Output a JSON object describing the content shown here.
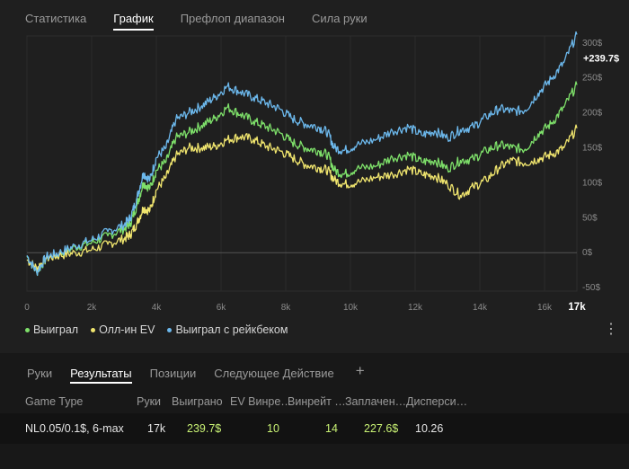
{
  "tabs": [
    "Статистика",
    "График",
    "Префлоп диапазон",
    "Сила руки"
  ],
  "active_tab": 1,
  "chart_data": {
    "type": "line",
    "x_ticks": [
      "0",
      "2k",
      "4k",
      "6k",
      "8k",
      "10k",
      "12k",
      "14k",
      "16k"
    ],
    "x_end_label": "17k",
    "y_ticks": [
      "300$",
      "250$",
      "200$",
      "150$",
      "100$",
      "50$",
      "0$",
      "-50$"
    ],
    "ylim": [
      -55,
      310
    ],
    "xlim": [
      0,
      17000
    ],
    "end_label": "+239.7$",
    "series": [
      {
        "name": "Выиграл",
        "color": "#7ee06a",
        "points": [
          [
            0,
            -5
          ],
          [
            300,
            -28
          ],
          [
            600,
            -8
          ],
          [
            1000,
            -2
          ],
          [
            1500,
            8
          ],
          [
            2000,
            14
          ],
          [
            2500,
            24
          ],
          [
            3000,
            34
          ],
          [
            3200,
            42
          ],
          [
            3400,
            68
          ],
          [
            3600,
            100
          ],
          [
            3800,
            92
          ],
          [
            4000,
            118
          ],
          [
            4300,
            130
          ],
          [
            4600,
            164
          ],
          [
            5000,
            172
          ],
          [
            5400,
            182
          ],
          [
            5800,
            192
          ],
          [
            6200,
            208
          ],
          [
            6600,
            198
          ],
          [
            7000,
            188
          ],
          [
            7400,
            180
          ],
          [
            7800,
            172
          ],
          [
            8200,
            158
          ],
          [
            8600,
            150
          ],
          [
            9000,
            146
          ],
          [
            9300,
            140
          ],
          [
            9500,
            118
          ],
          [
            9800,
            112
          ],
          [
            10200,
            120
          ],
          [
            10800,
            124
          ],
          [
            11300,
            136
          ],
          [
            11800,
            140
          ],
          [
            12200,
            130
          ],
          [
            12600,
            132
          ],
          [
            13000,
            120
          ],
          [
            13400,
            132
          ],
          [
            13800,
            134
          ],
          [
            14200,
            146
          ],
          [
            14600,
            154
          ],
          [
            15000,
            150
          ],
          [
            15400,
            148
          ],
          [
            15800,
            170
          ],
          [
            16200,
            184
          ],
          [
            16600,
            208
          ],
          [
            17000,
            240
          ]
        ]
      },
      {
        "name": "Олл-ин EV",
        "color": "#f0e56e",
        "points": [
          [
            0,
            -10
          ],
          [
            300,
            -22
          ],
          [
            600,
            -8
          ],
          [
            1000,
            -4
          ],
          [
            1500,
            0
          ],
          [
            2000,
            4
          ],
          [
            2500,
            12
          ],
          [
            3000,
            20
          ],
          [
            3200,
            26
          ],
          [
            3400,
            42
          ],
          [
            3600,
            64
          ],
          [
            3800,
            60
          ],
          [
            4000,
            90
          ],
          [
            4300,
            108
          ],
          [
            4600,
            138
          ],
          [
            5000,
            150
          ],
          [
            5400,
            150
          ],
          [
            5800,
            152
          ],
          [
            6200,
            162
          ],
          [
            6600,
            166
          ],
          [
            7000,
            162
          ],
          [
            7400,
            152
          ],
          [
            7800,
            146
          ],
          [
            8200,
            136
          ],
          [
            8600,
            126
          ],
          [
            9000,
            122
          ],
          [
            9300,
            118
          ],
          [
            9500,
            104
          ],
          [
            9800,
            98
          ],
          [
            10200,
            100
          ],
          [
            10800,
            108
          ],
          [
            11300,
            112
          ],
          [
            11800,
            120
          ],
          [
            12200,
            112
          ],
          [
            12600,
            110
          ],
          [
            13000,
            98
          ],
          [
            13400,
            82
          ],
          [
            13800,
            94
          ],
          [
            14200,
            104
          ],
          [
            14600,
            122
          ],
          [
            15000,
            132
          ],
          [
            15400,
            128
          ],
          [
            15800,
            134
          ],
          [
            16200,
            140
          ],
          [
            16600,
            150
          ],
          [
            17000,
            178
          ]
        ]
      },
      {
        "name": "Выиграл с рейкбеком",
        "color": "#6cb8ec",
        "points": [
          [
            0,
            -4
          ],
          [
            300,
            -28
          ],
          [
            600,
            -6
          ],
          [
            1000,
            0
          ],
          [
            1500,
            10
          ],
          [
            2000,
            18
          ],
          [
            2500,
            30
          ],
          [
            3000,
            40
          ],
          [
            3200,
            50
          ],
          [
            3400,
            78
          ],
          [
            3600,
            114
          ],
          [
            3800,
            104
          ],
          [
            4000,
            136
          ],
          [
            4300,
            150
          ],
          [
            4600,
            190
          ],
          [
            5000,
            200
          ],
          [
            5400,
            210
          ],
          [
            5800,
            222
          ],
          [
            6200,
            238
          ],
          [
            6600,
            230
          ],
          [
            7000,
            222
          ],
          [
            7400,
            214
          ],
          [
            7800,
            206
          ],
          [
            8200,
            192
          ],
          [
            8600,
            184
          ],
          [
            9000,
            180
          ],
          [
            9300,
            172
          ],
          [
            9500,
            150
          ],
          [
            9800,
            146
          ],
          [
            10200,
            154
          ],
          [
            10800,
            162
          ],
          [
            11300,
            174
          ],
          [
            11800,
            180
          ],
          [
            12200,
            168
          ],
          [
            12600,
            174
          ],
          [
            13000,
            164
          ],
          [
            13400,
            176
          ],
          [
            13800,
            180
          ],
          [
            14200,
            194
          ],
          [
            14600,
            206
          ],
          [
            15000,
            202
          ],
          [
            15400,
            204
          ],
          [
            15800,
            228
          ],
          [
            16200,
            248
          ],
          [
            16600,
            272
          ],
          [
            17000,
            312
          ]
        ]
      }
    ]
  },
  "legend": [
    "Выиграл",
    "Олл-ин EV",
    "Выиграл с рейкбеком"
  ],
  "bottom_tabs": [
    "Руки",
    "Результаты",
    "Позиции",
    "Следующее Действие"
  ],
  "active_bottom_tab": 1,
  "add_tab_icon": "plus-icon",
  "more_icon": "more-vert-icon",
  "table": {
    "headers": [
      "Game Type",
      "Руки",
      "Выиграно",
      "EV Винре…",
      "Винрейт …",
      "Заплачен…",
      "Дисперси…"
    ],
    "row": {
      "game_type": "NL0.05/0.1$, 6-max",
      "hands": "17k",
      "won": "239.7$",
      "ev_winrate": "10",
      "winrate": "14",
      "paid": "227.6$",
      "variance": "10.26"
    }
  },
  "colors": {
    "background": "#1f1f1f",
    "panel": "#181818",
    "row": "#121212",
    "won": "#7ee06a",
    "ev": "#f0e56e",
    "rakeback": "#6cb8ec",
    "positive_value": "#c9f274"
  }
}
